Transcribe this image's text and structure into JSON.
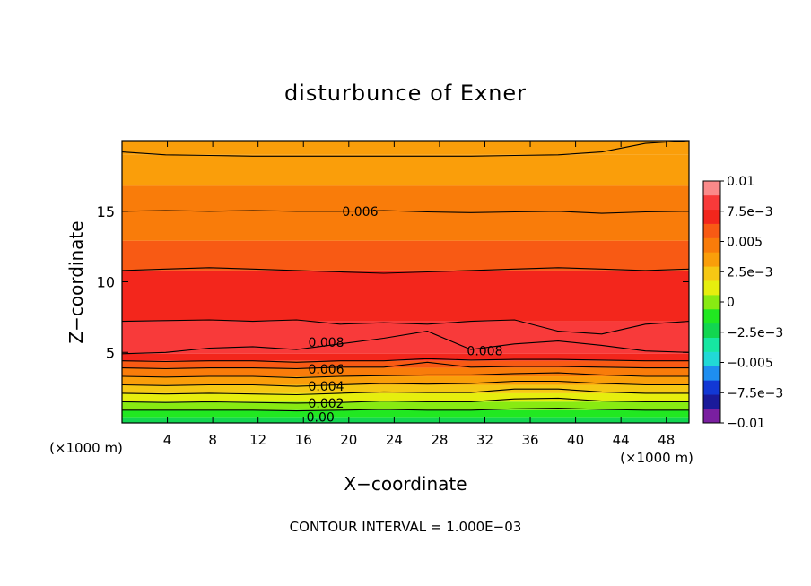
{
  "chart_data": {
    "type": "heatmap",
    "title": "disturbunce of Exner",
    "xlabel": "X−coordinate",
    "ylabel": "Z−coordinate",
    "x_unit_left": "(×1000 m)",
    "x_unit_right": "(×1000 m)",
    "footer": "CONTOUR INTERVAL = 1.000E−03",
    "xlim": [
      0,
      50
    ],
    "ylim": [
      0,
      20
    ],
    "x_ticks": [
      4,
      8,
      12,
      16,
      20,
      24,
      28,
      32,
      36,
      40,
      44,
      48
    ],
    "x_tick_labels": [
      "4",
      "8",
      "12",
      "16",
      "20",
      "24",
      "28",
      "32",
      "36",
      "40",
      "44",
      "48"
    ],
    "y_ticks": [
      5,
      10,
      15
    ],
    "y_tick_labels": [
      "5",
      "10",
      "15"
    ],
    "colorbar": {
      "range": [
        -0.01,
        0.01
      ],
      "tick_values": [
        0.01,
        0.0075,
        0.005,
        0.0025,
        0,
        -0.0025,
        -0.005,
        -0.0075,
        -0.01
      ],
      "tick_labels": [
        "0.01",
        "7.5e−3",
        "0.005",
        "2.5e−3",
        "0",
        "−2.5e−3",
        "−0.005",
        "−7.5e−3",
        "−0.01"
      ],
      "colors": [
        "#7a1fa0",
        "#1a1a9a",
        "#1238d4",
        "#1e8ef0",
        "#21d9d6",
        "#16e7a2",
        "#12d650",
        "#21e821",
        "#88ea12",
        "#e6ee0e",
        "#f6c814",
        "#fa9e0a",
        "#f97c0a",
        "#f85a14",
        "#f3261c",
        "#f83a3a",
        "#fa8a8a"
      ]
    },
    "contour_interval": 0.001,
    "contours": [
      {
        "level": 0.001,
        "z": [
          0.9,
          0.9,
          0.9,
          0.9,
          0.85,
          0.9,
          0.95,
          0.9,
          0.9,
          1.0,
          1.05,
          0.95,
          0.9,
          0.9
        ]
      },
      {
        "level": 0.002,
        "z": [
          1.5,
          1.45,
          1.5,
          1.45,
          1.4,
          1.45,
          1.55,
          1.5,
          1.5,
          1.7,
          1.75,
          1.55,
          1.5,
          1.5
        ]
      },
      {
        "level": 0.003,
        "z": [
          2.1,
          2.05,
          2.1,
          2.05,
          2.0,
          2.1,
          2.2,
          2.15,
          2.15,
          2.4,
          2.4,
          2.2,
          2.1,
          2.1
        ]
      },
      {
        "level": 0.004,
        "z": [
          2.7,
          2.65,
          2.7,
          2.7,
          2.6,
          2.7,
          2.8,
          2.75,
          2.8,
          2.95,
          2.95,
          2.8,
          2.7,
          2.7
        ]
      },
      {
        "level": 0.005,
        "z": [
          3.3,
          3.25,
          3.3,
          3.3,
          3.2,
          3.3,
          3.35,
          3.4,
          3.4,
          3.5,
          3.55,
          3.4,
          3.3,
          3.3
        ]
      },
      {
        "level": 0.006,
        "z": [
          3.9,
          3.85,
          3.9,
          3.9,
          3.85,
          3.95,
          3.95,
          4.3,
          3.95,
          4.0,
          4.0,
          3.95,
          3.9,
          3.9
        ]
      },
      {
        "level": 0.007,
        "z": [
          4.4,
          4.35,
          4.4,
          4.4,
          4.3,
          4.4,
          4.4,
          4.55,
          4.45,
          4.5,
          4.5,
          4.45,
          4.4,
          4.4
        ]
      },
      {
        "level": 0.008,
        "z": [
          4.9,
          5.0,
          5.3,
          5.4,
          5.2,
          5.6,
          6.0,
          6.5,
          5.2,
          5.6,
          5.8,
          5.5,
          5.1,
          5.0
        ]
      },
      {
        "level": 0.008,
        "z": [
          7.2,
          7.25,
          7.3,
          7.2,
          7.3,
          7.0,
          7.1,
          7.0,
          7.2,
          7.3,
          6.5,
          6.3,
          7.0,
          7.2
        ]
      },
      {
        "level": 0.007,
        "z": [
          10.8,
          10.9,
          11.0,
          10.9,
          10.8,
          10.7,
          10.6,
          10.7,
          10.8,
          10.9,
          11.0,
          10.9,
          10.8,
          10.9
        ]
      },
      {
        "level": 0.006,
        "z": [
          15.0,
          15.05,
          15.0,
          15.05,
          15.0,
          15.0,
          15.05,
          14.95,
          14.9,
          14.95,
          15.0,
          14.85,
          14.95,
          15.0
        ]
      },
      {
        "level": 0.005,
        "z": [
          19.2,
          19.0,
          18.95,
          18.9,
          18.9,
          18.9,
          18.9,
          18.9,
          18.9,
          18.95,
          19.0,
          19.2,
          19.8,
          20.0
        ]
      }
    ],
    "contour_labels": [
      {
        "text": "0.006",
        "x": 21.0,
        "y": 15.0
      },
      {
        "text": "0.008",
        "x": 18.0,
        "y": 5.7
      },
      {
        "text": "0.008",
        "x": 32.0,
        "y": 5.1
      },
      {
        "text": "0.006",
        "x": 18.0,
        "y": 3.8
      },
      {
        "text": "0.004",
        "x": 18.0,
        "y": 2.6
      },
      {
        "text": "0.002",
        "x": 18.0,
        "y": 1.4
      },
      {
        "text": "0.00",
        "x": 17.5,
        "y": 0.4
      }
    ],
    "bands": [
      {
        "from": 19.0,
        "to": 20.0,
        "color": "#fa9e0a"
      },
      {
        "from": 16.8,
        "to": 19.0,
        "color": "#fa9e0a"
      },
      {
        "from": 12.9,
        "to": 16.8,
        "color": "#f97c0a"
      },
      {
        "from": 10.8,
        "to": 12.9,
        "color": "#f85a14"
      },
      {
        "from": 7.2,
        "to": 10.8,
        "color": "#f3261c"
      },
      {
        "from": 4.9,
        "to": 7.2,
        "color": "#f83a3a"
      },
      {
        "from": 4.4,
        "to": 4.9,
        "color": "#f3261c"
      },
      {
        "from": 3.9,
        "to": 4.4,
        "color": "#f85a14"
      },
      {
        "from": 3.3,
        "to": 3.9,
        "color": "#f97c0a"
      },
      {
        "from": 2.7,
        "to": 3.3,
        "color": "#fa9e0a"
      },
      {
        "from": 2.1,
        "to": 2.7,
        "color": "#f6c814"
      },
      {
        "from": 1.5,
        "to": 2.1,
        "color": "#e6ee0e"
      },
      {
        "from": 0.9,
        "to": 1.5,
        "color": "#88ea12"
      },
      {
        "from": 0.4,
        "to": 0.9,
        "color": "#21e821"
      },
      {
        "from": 0.0,
        "to": 0.4,
        "color": "#12d650"
      }
    ]
  }
}
